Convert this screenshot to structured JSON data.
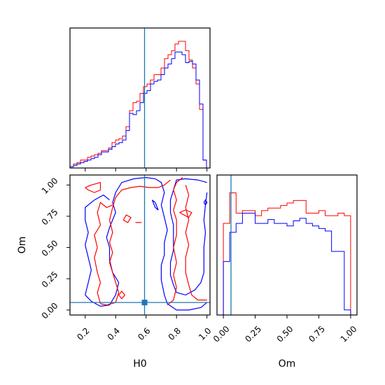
{
  "chart_data": {
    "type": "corner",
    "parameters": [
      "H0",
      "Om"
    ],
    "truth": {
      "H0": 0.59,
      "Om": 0.06
    },
    "colors": {
      "red": "#ff0000",
      "blue": "#0000ff",
      "truth": "#1f77b4"
    },
    "panels": [
      {
        "id": "hist-H0",
        "type": "step-histogram",
        "x_range": [
          0.1,
          1.02
        ],
        "y_range": [
          0,
          1.05
        ],
        "xticks": [
          0.2,
          0.4,
          0.6,
          0.8,
          1.0
        ],
        "show_tick_labels": false,
        "bins": [
          0.1,
          0.123,
          0.146,
          0.169,
          0.192,
          0.215,
          0.238,
          0.261,
          0.284,
          0.307,
          0.33,
          0.353,
          0.376,
          0.399,
          0.422,
          0.445,
          0.468,
          0.491,
          0.514,
          0.537,
          0.56,
          0.583,
          0.606,
          0.629,
          0.652,
          0.675,
          0.698,
          0.721,
          0.744,
          0.767,
          0.79,
          0.813,
          0.836,
          0.859,
          0.882,
          0.905,
          0.928,
          0.951,
          0.974,
          0.997,
          1.02
        ],
        "series": [
          {
            "color": "red",
            "values": [
              0.01,
              0.03,
              0.04,
              0.06,
              0.06,
              0.08,
              0.09,
              0.1,
              0.11,
              0.13,
              0.13,
              0.15,
              0.19,
              0.21,
              0.22,
              0.24,
              0.31,
              0.43,
              0.49,
              0.5,
              0.56,
              0.61,
              0.63,
              0.66,
              0.7,
              0.7,
              0.75,
              0.82,
              0.85,
              0.88,
              0.93,
              0.95,
              0.95,
              0.88,
              0.81,
              0.75,
              0.63,
              0.44,
              0.06,
              0.0
            ]
          },
          {
            "color": "blue",
            "values": [
              0.01,
              0.02,
              0.03,
              0.04,
              0.05,
              0.06,
              0.07,
              0.08,
              0.1,
              0.12,
              0.12,
              0.14,
              0.16,
              0.18,
              0.19,
              0.21,
              0.28,
              0.41,
              0.4,
              0.43,
              0.49,
              0.56,
              0.58,
              0.63,
              0.65,
              0.66,
              0.7,
              0.75,
              0.78,
              0.82,
              0.87,
              0.87,
              0.85,
              0.79,
              0.8,
              0.78,
              0.66,
              0.48,
              0.06,
              0.0
            ]
          }
        ]
      },
      {
        "id": "contour-H0-Om",
        "type": "contour",
        "x_range": [
          0.1,
          1.02
        ],
        "y_range": [
          -0.04,
          1.08
        ],
        "xticks": [
          0.2,
          0.4,
          0.6,
          0.8,
          1.0
        ],
        "yticks": [
          0.0,
          0.25,
          0.5,
          0.75,
          1.0
        ],
        "xtick_labels": [
          "0.2",
          "0.4",
          "0.6",
          "0.8",
          "1.0"
        ],
        "ytick_labels": [
          "0.00",
          "0.25",
          "0.50",
          "0.75",
          "1.00"
        ],
        "xlabel": "H0",
        "ylabel": "Om",
        "contours": [
          {
            "color": "blue",
            "points": [
              [
                0.2,
                0.12
              ],
              [
                0.24,
                0.07
              ],
              [
                0.3,
                0.03
              ],
              [
                0.36,
                0.04
              ],
              [
                0.4,
                0.12
              ],
              [
                0.42,
                0.22
              ],
              [
                0.38,
                0.3
              ],
              [
                0.36,
                0.4
              ],
              [
                0.36,
                0.5
              ],
              [
                0.34,
                0.58
              ],
              [
                0.36,
                0.66
              ],
              [
                0.4,
                0.78
              ],
              [
                0.38,
                0.86
              ],
              [
                0.4,
                0.94
              ],
              [
                0.44,
                1.02
              ],
              [
                0.52,
                1.05
              ],
              [
                0.6,
                1.06
              ],
              [
                0.66,
                1.05
              ],
              [
                0.7,
                1.02
              ],
              [
                0.72,
                0.94
              ],
              [
                0.7,
                0.84
              ],
              [
                0.72,
                0.74
              ],
              [
                0.74,
                0.64
              ],
              [
                0.72,
                0.54
              ],
              [
                0.72,
                0.44
              ],
              [
                0.7,
                0.36
              ],
              [
                0.7,
                0.24
              ],
              [
                0.72,
                0.12
              ],
              [
                0.74,
                0.05
              ],
              [
                0.8,
                0.0
              ],
              [
                0.88,
                0.0
              ],
              [
                0.96,
                0.02
              ],
              [
                1.0,
                0.06
              ]
            ]
          },
          {
            "color": "blue",
            "points": [
              [
                1.0,
                1.02
              ],
              [
                0.94,
                1.04
              ],
              [
                0.86,
                1.05
              ],
              [
                0.8,
                1.04
              ],
              [
                0.78,
                0.96
              ],
              [
                0.76,
                0.88
              ],
              [
                0.76,
                0.78
              ],
              [
                0.78,
                0.68
              ],
              [
                0.78,
                0.58
              ],
              [
                0.78,
                0.48
              ],
              [
                0.76,
                0.38
              ],
              [
                0.76,
                0.28
              ],
              [
                0.78,
                0.2
              ],
              [
                0.8,
                0.14
              ],
              [
                0.86,
                0.12
              ],
              [
                0.92,
                0.16
              ],
              [
                0.96,
                0.22
              ],
              [
                0.98,
                0.3
              ],
              [
                0.98,
                0.4
              ],
              [
                0.98,
                0.5
              ],
              [
                0.99,
                0.62
              ],
              [
                0.98,
                0.72
              ],
              [
                0.99,
                0.84
              ],
              [
                1.0,
                0.94
              ]
            ]
          },
          {
            "color": "blue",
            "points": [
              [
                0.2,
                0.12
              ],
              [
                0.22,
                0.22
              ],
              [
                0.24,
                0.32
              ],
              [
                0.22,
                0.42
              ],
              [
                0.2,
                0.52
              ],
              [
                0.22,
                0.62
              ],
              [
                0.2,
                0.72
              ],
              [
                0.2,
                0.82
              ],
              [
                0.26,
                0.88
              ],
              [
                0.32,
                0.92
              ],
              [
                0.36,
                0.88
              ]
            ]
          },
          {
            "color": "blue",
            "points": [
              [
                0.64,
                0.88
              ],
              [
                0.66,
                0.82
              ],
              [
                0.68,
                0.8
              ],
              [
                0.66,
                0.86
              ],
              [
                0.64,
                0.88
              ]
            ]
          },
          {
            "color": "blue",
            "points": [
              [
                0.98,
                0.86
              ],
              [
                0.99,
                0.88
              ],
              [
                1.0,
                0.86
              ],
              [
                0.99,
                0.84
              ],
              [
                0.98,
                0.86
              ]
            ]
          },
          {
            "color": "red",
            "points": [
              [
                0.3,
                0.05
              ],
              [
                0.34,
                0.04
              ],
              [
                0.4,
                0.06
              ],
              [
                0.42,
                0.14
              ],
              [
                0.4,
                0.22
              ],
              [
                0.38,
                0.3
              ],
              [
                0.36,
                0.38
              ],
              [
                0.38,
                0.46
              ],
              [
                0.36,
                0.54
              ],
              [
                0.38,
                0.62
              ],
              [
                0.36,
                0.72
              ],
              [
                0.38,
                0.82
              ],
              [
                0.4,
                0.9
              ],
              [
                0.44,
                0.96
              ],
              [
                0.5,
                0.98
              ],
              [
                0.56,
                0.99
              ],
              [
                0.62,
                0.98
              ],
              [
                0.68,
                0.98
              ],
              [
                0.72,
                1.0
              ],
              [
                0.76,
                1.04
              ]
            ]
          },
          {
            "color": "red",
            "points": [
              [
                0.3,
                0.05
              ],
              [
                0.28,
                0.14
              ],
              [
                0.3,
                0.22
              ],
              [
                0.28,
                0.3
              ],
              [
                0.26,
                0.42
              ],
              [
                0.28,
                0.5
              ],
              [
                0.26,
                0.6
              ],
              [
                0.3,
                0.68
              ],
              [
                0.28,
                0.78
              ],
              [
                0.3,
                0.86
              ],
              [
                0.34,
                0.82
              ],
              [
                0.38,
                0.84
              ]
            ]
          },
          {
            "color": "red",
            "points": [
              [
                0.74,
                0.04
              ],
              [
                0.78,
                0.08
              ],
              [
                0.8,
                0.18
              ],
              [
                0.78,
                0.28
              ],
              [
                0.8,
                0.38
              ],
              [
                0.78,
                0.5
              ],
              [
                0.8,
                0.6
              ],
              [
                0.8,
                0.72
              ],
              [
                0.78,
                0.8
              ],
              [
                0.8,
                0.88
              ],
              [
                0.78,
                0.96
              ],
              [
                0.8,
                1.02
              ],
              [
                0.84,
                1.06
              ]
            ]
          },
          {
            "color": "red",
            "points": [
              [
                0.86,
                1.0
              ],
              [
                0.88,
                0.92
              ],
              [
                0.86,
                0.82
              ],
              [
                0.88,
                0.72
              ],
              [
                0.86,
                0.62
              ],
              [
                0.88,
                0.52
              ],
              [
                0.86,
                0.42
              ],
              [
                0.86,
                0.3
              ],
              [
                0.88,
                0.2
              ],
              [
                0.9,
                0.12
              ],
              [
                0.94,
                0.08
              ],
              [
                1.0,
                0.08
              ]
            ]
          },
          {
            "color": "red",
            "points": [
              [
                0.2,
                0.98
              ],
              [
                0.24,
                1.0
              ],
              [
                0.3,
                1.02
              ],
              [
                0.3,
                0.96
              ],
              [
                0.26,
                0.94
              ],
              [
                0.22,
                0.96
              ],
              [
                0.2,
                0.98
              ]
            ]
          },
          {
            "color": "red",
            "points": [
              [
                0.45,
                0.72
              ],
              [
                0.47,
                0.76
              ],
              [
                0.5,
                0.74
              ],
              [
                0.48,
                0.7
              ],
              [
                0.45,
                0.72
              ]
            ]
          },
          {
            "color": "red",
            "points": [
              [
                0.42,
                0.12
              ],
              [
                0.44,
                0.15
              ],
              [
                0.46,
                0.12
              ],
              [
                0.44,
                0.09
              ],
              [
                0.42,
                0.12
              ]
            ]
          },
          {
            "color": "red",
            "points": [
              [
                0.82,
                0.78
              ],
              [
                0.86,
                0.8
              ],
              [
                0.9,
                0.78
              ],
              [
                0.88,
                0.74
              ],
              [
                0.82,
                0.78
              ]
            ]
          },
          {
            "color": "red",
            "points": [
              [
                0.53,
                0.7
              ],
              [
                0.57,
                0.7
              ]
            ]
          }
        ]
      },
      {
        "id": "hist-Om",
        "type": "step-histogram",
        "x_range": [
          -0.05,
          1.05
        ],
        "y_range": [
          0,
          1.1
        ],
        "xticks": [
          0.0,
          0.25,
          0.5,
          0.75,
          1.0
        ],
        "xtick_labels": [
          "0.00",
          "0.25",
          "0.50",
          "0.75",
          "1.00"
        ],
        "xlabel": "Om",
        "bins": [
          0.0,
          0.05,
          0.1,
          0.15,
          0.2,
          0.25,
          0.3,
          0.35,
          0.4,
          0.45,
          0.5,
          0.55,
          0.6,
          0.65,
          0.7,
          0.75,
          0.8,
          0.85,
          0.9,
          0.95,
          1.0
        ],
        "series": [
          {
            "color": "red",
            "values": [
              0.72,
              0.96,
              0.8,
              0.82,
              0.82,
              0.78,
              0.82,
              0.84,
              0.84,
              0.86,
              0.88,
              0.9,
              0.9,
              0.8,
              0.8,
              0.82,
              0.78,
              0.78,
              0.8,
              0.78
            ]
          },
          {
            "color": "blue",
            "values": [
              0.42,
              0.65,
              0.72,
              0.8,
              0.8,
              0.72,
              0.72,
              0.75,
              0.72,
              0.72,
              0.7,
              0.74,
              0.76,
              0.72,
              0.7,
              0.68,
              0.66,
              0.5,
              0.5,
              0.04
            ]
          }
        ]
      }
    ]
  }
}
